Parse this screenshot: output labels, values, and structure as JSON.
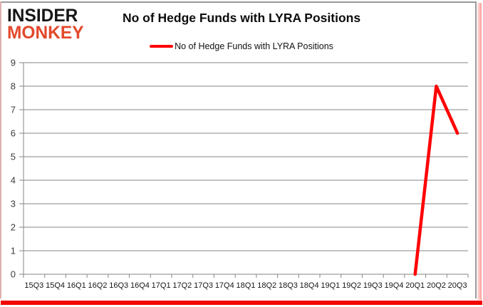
{
  "branding": {
    "logo_line1": "INSIDER",
    "logo_line2": "MONKEY",
    "logo_color_primary": "#161616",
    "logo_color_accent": "#e2492c"
  },
  "header": {
    "title": "No of Hedge Funds with LYRA Positions"
  },
  "legend": {
    "label": "No of Hedge Funds with LYRA Positions",
    "swatch_color": "#ff0000"
  },
  "chart_data": {
    "type": "line",
    "title": "No of Hedge Funds with LYRA Positions",
    "xlabel": "",
    "ylabel": "",
    "categories": [
      "15Q3",
      "15Q4",
      "16Q1",
      "16Q2",
      "16Q3",
      "16Q4",
      "17Q1",
      "17Q2",
      "17Q3",
      "17Q4",
      "18Q1",
      "18Q2",
      "18Q3",
      "18Q4",
      "19Q1",
      "19Q2",
      "19Q3",
      "19Q4",
      "20Q1",
      "20Q2",
      "20Q3"
    ],
    "series": [
      {
        "name": "No of Hedge Funds with LYRA Positions",
        "color": "#ff0000",
        "values": [
          null,
          null,
          null,
          null,
          null,
          null,
          null,
          null,
          null,
          null,
          null,
          null,
          null,
          null,
          null,
          null,
          null,
          null,
          0,
          8,
          6
        ]
      }
    ],
    "ylim": [
      0,
      9
    ],
    "ytick_interval": 1,
    "yticks": [
      0,
      1,
      2,
      3,
      4,
      5,
      6,
      7,
      8,
      9
    ],
    "grid": true,
    "gridline_color": "#868686",
    "axis_color": "#868686",
    "legend_position": "top"
  },
  "frame": {
    "border_color": "#9a9a9a",
    "bottom_bar_color": "#f20400"
  }
}
